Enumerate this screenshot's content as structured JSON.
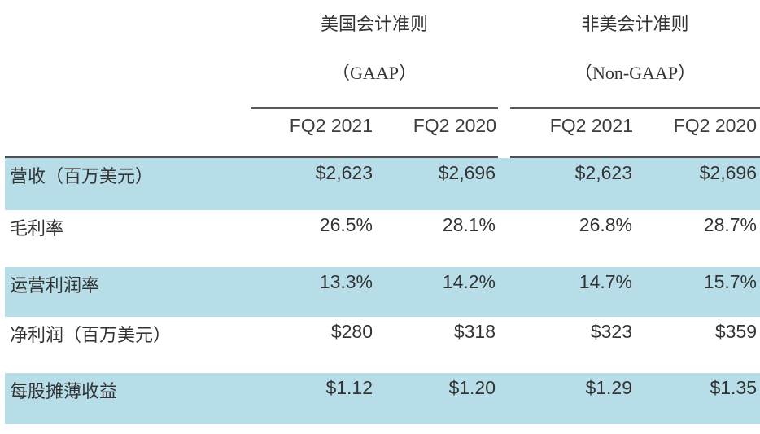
{
  "chart_data": {
    "type": "table",
    "title": "",
    "column_groups": [
      {
        "title_line1": "美国会计准则",
        "title_line2": "（GAAP）",
        "columns": [
          "FQ2 2021",
          "FQ2 2020"
        ]
      },
      {
        "title_line1": "非美会计准则",
        "title_line2": "（Non-GAAP）",
        "columns": [
          "FQ2 2021",
          "FQ2 2020"
        ]
      }
    ],
    "rows": [
      {
        "label": "营收（百万美元）",
        "values": [
          "$2,623",
          "$2,696",
          "$2,623",
          "$2,696"
        ]
      },
      {
        "label": "毛利率",
        "values": [
          "26.5%",
          "28.1%",
          "26.8%",
          "28.7%"
        ]
      },
      {
        "label": "运营利润率",
        "values": [
          "13.3%",
          "14.2%",
          "14.7%",
          "15.7%"
        ]
      },
      {
        "label": "净利润（百万美元）",
        "values": [
          "$280",
          "$318",
          "$323",
          "$359"
        ]
      },
      {
        "label": "每股摊薄收益",
        "values": [
          "$1.12",
          "$1.20",
          "$1.29",
          "$1.35"
        ]
      }
    ]
  },
  "table": {
    "groups": {
      "gaap": {
        "line1": "美国会计准则",
        "line2": "（GAAP）",
        "col1": "FQ2 2021",
        "col2": "FQ2 2020"
      },
      "nongaap": {
        "line1": "非美会计准则",
        "line2": "（Non-GAAP）",
        "col1": "FQ2 2021",
        "col2": "FQ2 2020"
      }
    },
    "rows": [
      {
        "label": "营收（百万美元）",
        "values": [
          "$2,623",
          "$2,696",
          "$2,623",
          "$2,696"
        ]
      },
      {
        "label": "毛利率",
        "values": [
          "26.5%",
          "28.1%",
          "26.8%",
          "28.7%"
        ]
      },
      {
        "label": "运营利润率",
        "values": [
          "13.3%",
          "14.2%",
          "14.7%",
          "15.7%"
        ]
      },
      {
        "label": "净利润（百万美元）",
        "values": [
          "$280",
          "$318",
          "$323",
          "$359"
        ]
      },
      {
        "label": "每股摊薄收益",
        "values": [
          "$1.12",
          "$1.20",
          "$1.29",
          "$1.35"
        ]
      }
    ],
    "colors": {
      "highlight_row_bg": "#b6dde8",
      "text": "#333333",
      "line": "#595959"
    }
  }
}
